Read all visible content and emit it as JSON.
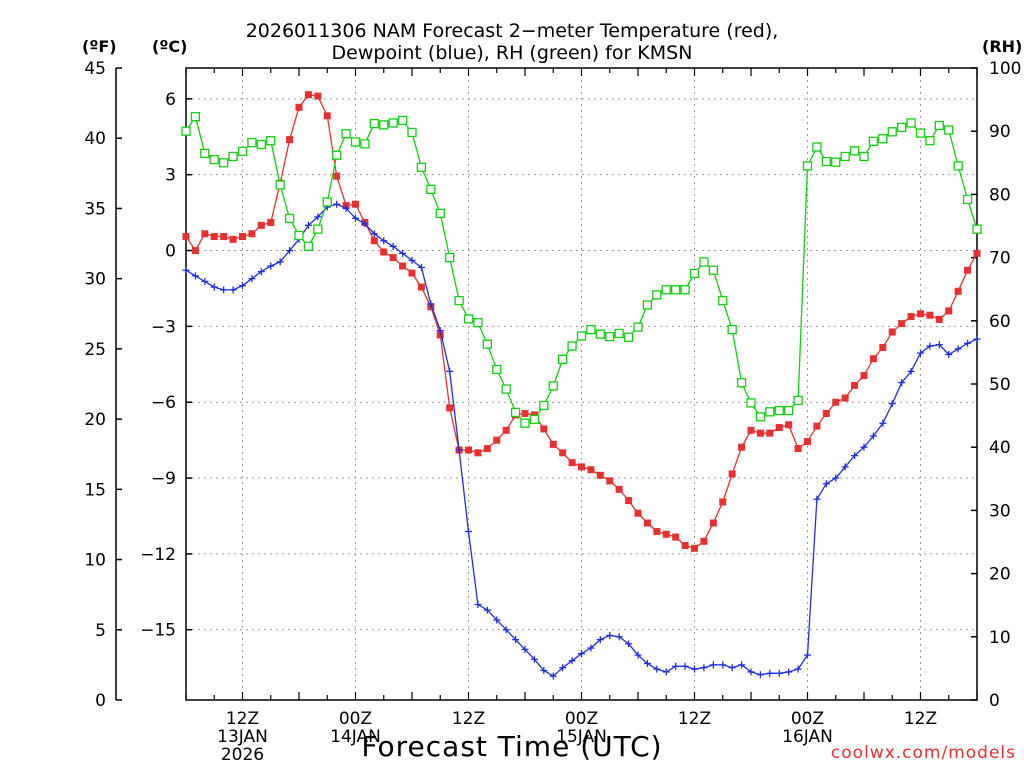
{
  "chart_data": {
    "type": "line",
    "title_line1": "2026011306 NAM Forecast 2−meter Temperature (red),",
    "title_line2": "Dewpoint (blue), RH (green) for KMSN",
    "xlabel": "Forecast Time (UTC)",
    "credit": "coolwx.com/models",
    "units": {
      "left_f": "(ºF)",
      "left_c": "(ºC)",
      "right": "(RH)"
    },
    "axis_f": {
      "ylim": [
        0,
        45
      ],
      "ticks": [
        0,
        5,
        10,
        15,
        20,
        25,
        30,
        35,
        40,
        45
      ],
      "tick_labels": [
        "0",
        "5",
        "10",
        "15",
        "20",
        "25",
        "30",
        "35",
        "40",
        "45"
      ]
    },
    "axis_c": {
      "ylim": [
        -17.78,
        7.22
      ],
      "ticks": [
        -15,
        -12,
        -9,
        -6,
        -3,
        0,
        3,
        6
      ],
      "tick_labels": [
        "−15",
        "−12",
        "−9",
        "−6",
        "−3",
        "0",
        "3",
        "6"
      ]
    },
    "axis_rh": {
      "ylim": [
        0,
        100
      ],
      "ticks": [
        0,
        10,
        20,
        30,
        40,
        50,
        60,
        70,
        80,
        90,
        100
      ],
      "tick_labels": [
        "0",
        "10",
        "20",
        "30",
        "40",
        "50",
        "60",
        "70",
        "80",
        "90",
        "100"
      ]
    },
    "x_range_hours": [
      0,
      84
    ],
    "x_ticks": [
      {
        "hour": 6,
        "label": "12Z",
        "sub1": "13JAN",
        "sub2": "2026"
      },
      {
        "hour": 18,
        "label": "00Z",
        "sub1": "14JAN",
        "sub2": ""
      },
      {
        "hour": 30,
        "label": "12Z",
        "sub1": "",
        "sub2": ""
      },
      {
        "hour": 42,
        "label": "00Z",
        "sub1": "15JAN",
        "sub2": ""
      },
      {
        "hour": 54,
        "label": "12Z",
        "sub1": "",
        "sub2": ""
      },
      {
        "hour": 66,
        "label": "00Z",
        "sub1": "16JAN",
        "sub2": ""
      },
      {
        "hour": 78,
        "label": "12Z",
        "sub1": "",
        "sub2": ""
      }
    ],
    "colors": {
      "temperature": "#e8302f",
      "dewpoint": "#1f2fe0",
      "rh": "#10d010"
    },
    "series": [
      {
        "key": "temperature",
        "axis": "f",
        "x": [
          0,
          1,
          2,
          3,
          4,
          5,
          6,
          7,
          8,
          9,
          10,
          11,
          12,
          13,
          14,
          15,
          16,
          17,
          18,
          19,
          20,
          21,
          22,
          23,
          24,
          25,
          26,
          27,
          28,
          29,
          30,
          31,
          32,
          33,
          34,
          35,
          36,
          37,
          38,
          39,
          40,
          41,
          42,
          43,
          44,
          45,
          46,
          47,
          48,
          49,
          50,
          51,
          52,
          53,
          54,
          55,
          56,
          57,
          58,
          59,
          60,
          61,
          62,
          63,
          64,
          65,
          66,
          67,
          68,
          69,
          70,
          71,
          72,
          73,
          74,
          75,
          76,
          77,
          78,
          79,
          80,
          81,
          82,
          83,
          84
        ],
        "values": [
          33.0,
          32.0,
          33.2,
          33.0,
          33.0,
          32.8,
          33.0,
          33.2,
          33.8,
          34.0,
          36.8,
          39.9,
          42.2,
          43.1,
          43.0,
          41.6,
          37.3,
          35.2,
          35.3,
          34.0,
          32.7,
          31.9,
          31.5,
          30.9,
          30.4,
          29.4,
          28.0,
          26.0,
          20.8,
          17.8,
          17.8,
          17.6,
          17.9,
          18.5,
          19.2,
          20.3,
          20.4,
          20.3,
          19.3,
          18.2,
          17.6,
          16.9,
          16.6,
          16.4,
          16.0,
          15.6,
          15.0,
          14.2,
          13.3,
          12.6,
          12.0,
          11.8,
          11.6,
          11.0,
          10.8,
          11.3,
          12.6,
          14.1,
          16.1,
          18.0,
          19.2,
          19.0,
          19.0,
          19.4,
          19.6,
          17.9,
          18.4,
          19.5,
          20.4,
          21.2,
          21.5,
          22.4,
          23.1,
          24.3,
          25.1,
          26.2,
          26.8,
          27.3,
          27.5,
          27.4,
          27.1,
          27.7,
          29.1,
          30.6,
          31.8
        ],
        "name": ""
      },
      {
        "key": "dewpoint",
        "axis": "f",
        "x": [
          0,
          1,
          2,
          3,
          4,
          5,
          6,
          7,
          8,
          9,
          10,
          11,
          12,
          13,
          14,
          15,
          16,
          17,
          18,
          19,
          20,
          21,
          22,
          23,
          24,
          25,
          26,
          27,
          28,
          29,
          30,
          31,
          32,
          33,
          34,
          35,
          36,
          37,
          38,
          39,
          40,
          41,
          42,
          43,
          44,
          45,
          46,
          47,
          48,
          49,
          50,
          51,
          52,
          53,
          54,
          55,
          56,
          57,
          58,
          59,
          60,
          61,
          62,
          63,
          64,
          65,
          66,
          67,
          68,
          69,
          70,
          71,
          72,
          73,
          74,
          75,
          76,
          77,
          78,
          79,
          80,
          81,
          82,
          83,
          84
        ],
        "values": [
          30.6,
          30.2,
          29.8,
          29.4,
          29.2,
          29.2,
          29.5,
          30.0,
          30.5,
          30.9,
          31.2,
          32.0,
          32.8,
          33.8,
          34.4,
          35.1,
          35.3,
          35.0,
          34.3,
          33.9,
          33.2,
          32.7,
          32.3,
          31.8,
          31.3,
          30.8,
          28.2,
          26.3,
          23.4,
          17.8,
          12.0,
          6.8,
          6.4,
          5.7,
          5.0,
          4.3,
          3.6,
          2.9,
          2.1,
          1.7,
          2.3,
          2.8,
          3.3,
          3.7,
          4.3,
          4.6,
          4.5,
          4.0,
          3.2,
          2.6,
          2.2,
          2.0,
          2.4,
          2.4,
          2.2,
          2.3,
          2.5,
          2.5,
          2.3,
          2.5,
          2.0,
          1.8,
          1.9,
          1.9,
          2.0,
          2.2,
          3.2,
          14.3,
          15.4,
          15.8,
          16.6,
          17.4,
          18.0,
          18.8,
          19.7,
          21.1,
          22.6,
          23.4,
          24.7,
          25.2,
          25.3,
          24.6,
          25.0,
          25.4,
          25.7
        ],
        "name": ""
      },
      {
        "key": "rh",
        "axis": "rh",
        "x": [
          0,
          1,
          2,
          3,
          4,
          5,
          6,
          7,
          8,
          9,
          10,
          11,
          12,
          13,
          14,
          15,
          16,
          17,
          18,
          19,
          20,
          21,
          22,
          23,
          24,
          25,
          26,
          27,
          28,
          29,
          30,
          31,
          32,
          33,
          34,
          35,
          36,
          37,
          38,
          39,
          40,
          41,
          42,
          43,
          44,
          45,
          46,
          47,
          48,
          49,
          50,
          51,
          52,
          53,
          54,
          55,
          56,
          57,
          58,
          59,
          60,
          61,
          62,
          63,
          64,
          65,
          66,
          67,
          68,
          69,
          70,
          71,
          72,
          73,
          74,
          75,
          76,
          77,
          78,
          79,
          80,
          81,
          82,
          83,
          84
        ],
        "values": [
          90.0,
          92.3,
          86.5,
          85.5,
          85.0,
          86.0,
          86.8,
          88.2,
          87.9,
          88.5,
          81.5,
          76.2,
          73.5,
          71.8,
          74.5,
          78.8,
          86.2,
          89.6,
          88.3,
          88.0,
          91.2,
          91.0,
          91.3,
          91.7,
          89.8,
          84.3,
          80.8,
          77.0,
          70.0,
          63.2,
          60.3,
          59.7,
          56.3,
          52.3,
          49.2,
          45.5,
          43.8,
          44.4,
          46.6,
          49.7,
          53.9,
          56.0,
          57.6,
          58.6,
          57.9,
          57.5,
          58.0,
          57.4,
          59.0,
          62.5,
          64.1,
          64.9,
          64.9,
          64.9,
          67.5,
          69.3,
          68.0,
          63.2,
          58.6,
          50.2,
          47.0,
          44.8,
          45.6,
          45.8,
          45.8,
          47.4,
          84.5,
          87.5,
          85.2,
          85.1,
          86.0,
          86.9,
          86.0,
          88.4,
          88.8,
          89.9,
          90.6,
          91.3,
          89.7,
          88.5,
          90.9,
          90.2,
          84.5,
          79.2,
          74.5
        ],
        "name": ""
      }
    ]
  }
}
